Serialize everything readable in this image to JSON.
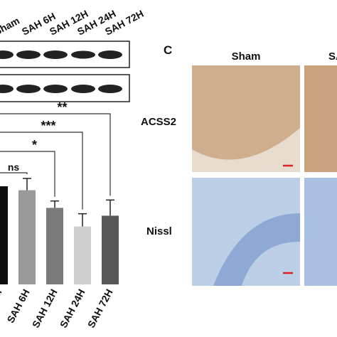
{
  "panel_b": {
    "chart_data": {
      "type": "bar",
      "categories": [
        "Sham",
        "SAH 6H",
        "SAH 12H",
        "SAH 24H",
        "SAH 72H"
      ],
      "values": [
        1.0,
        0.96,
        0.78,
        0.59,
        0.7
      ],
      "errors": [
        0,
        0.12,
        0.07,
        0.13,
        0.16
      ],
      "colors": [
        "#0d0d0d",
        "#9a9a9a",
        "#7a7a7a",
        "#cfcfcf",
        "#575757"
      ],
      "ylim": [
        0,
        1.3
      ],
      "significance": [
        "ns",
        "*",
        "***",
        "**"
      ]
    }
  },
  "panel_c": {
    "letter": "C",
    "columns": [
      "Sham",
      "SAH"
    ],
    "rows": [
      "ACSS2",
      "Nissl"
    ]
  }
}
